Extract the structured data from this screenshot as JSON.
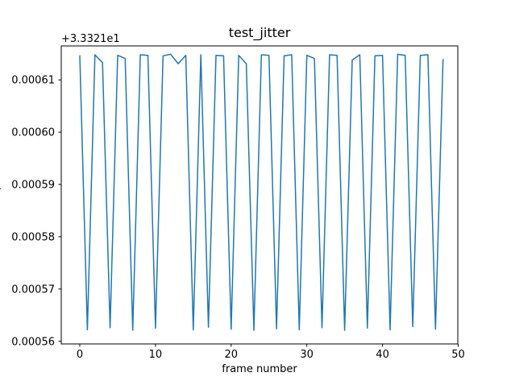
{
  "figure": {
    "title": "test_jitter",
    "xlabel": "frame number",
    "y_offset_text": "+3.3321e1",
    "ylabel_clipped": ")",
    "line_color": "#1f77b4",
    "background": "#ffffff"
  },
  "chart_data": {
    "type": "line",
    "title": "test_jitter",
    "xlabel": "frame number",
    "ylabel": "",
    "y_offset_label": "+3.3321e1",
    "y_axis_offset": 33.321,
    "grid": false,
    "legend": null,
    "xlim": [
      -2.45,
      49.95
    ],
    "ylim": [
      0.0005595,
      0.0006165
    ],
    "xticks": [
      0,
      10,
      20,
      30,
      40,
      50
    ],
    "xtick_labels": [
      "0",
      "10",
      "20",
      "30",
      "40",
      "50"
    ],
    "yticks": [
      0.00056,
      0.00057,
      0.00058,
      0.00059,
      0.0006,
      0.00061
    ],
    "ytick_labels": [
      "0.00056",
      "0.00057",
      "0.00058",
      "0.00059",
      "0.00060",
      "0.00061"
    ],
    "x": [
      0,
      1,
      2,
      3,
      4,
      5,
      6,
      7,
      8,
      9,
      10,
      11,
      12,
      13,
      14,
      15,
      16,
      17,
      18,
      19,
      20,
      21,
      22,
      23,
      24,
      25,
      26,
      27,
      28,
      29,
      30,
      31,
      32,
      33,
      34,
      35,
      36,
      37,
      38,
      39,
      40,
      41,
      42,
      43,
      44,
      45,
      46,
      47,
      48
    ],
    "y": [
      0.0006147,
      0.0005622,
      0.0006148,
      0.0006133,
      0.0005626,
      0.0006147,
      0.0006141,
      0.0005621,
      0.0006148,
      0.0006147,
      0.0005625,
      0.0006146,
      0.0006149,
      0.0006131,
      0.0006147,
      0.0005622,
      0.0006148,
      0.0005627,
      0.0006147,
      0.0006146,
      0.0005623,
      0.0006147,
      0.0006131,
      0.0005621,
      0.0006148,
      0.0006147,
      0.0005624,
      0.0006146,
      0.0006148,
      0.0005622,
      0.0006147,
      0.0006141,
      0.0005626,
      0.0006148,
      0.0006147,
      0.0005621,
      0.0006138,
      0.0006148,
      0.0005625,
      0.0006146,
      0.0006147,
      0.0005622,
      0.0006149,
      0.0006147,
      0.0005628,
      0.0006147,
      0.0006148,
      0.0005623,
      0.000614
    ]
  }
}
